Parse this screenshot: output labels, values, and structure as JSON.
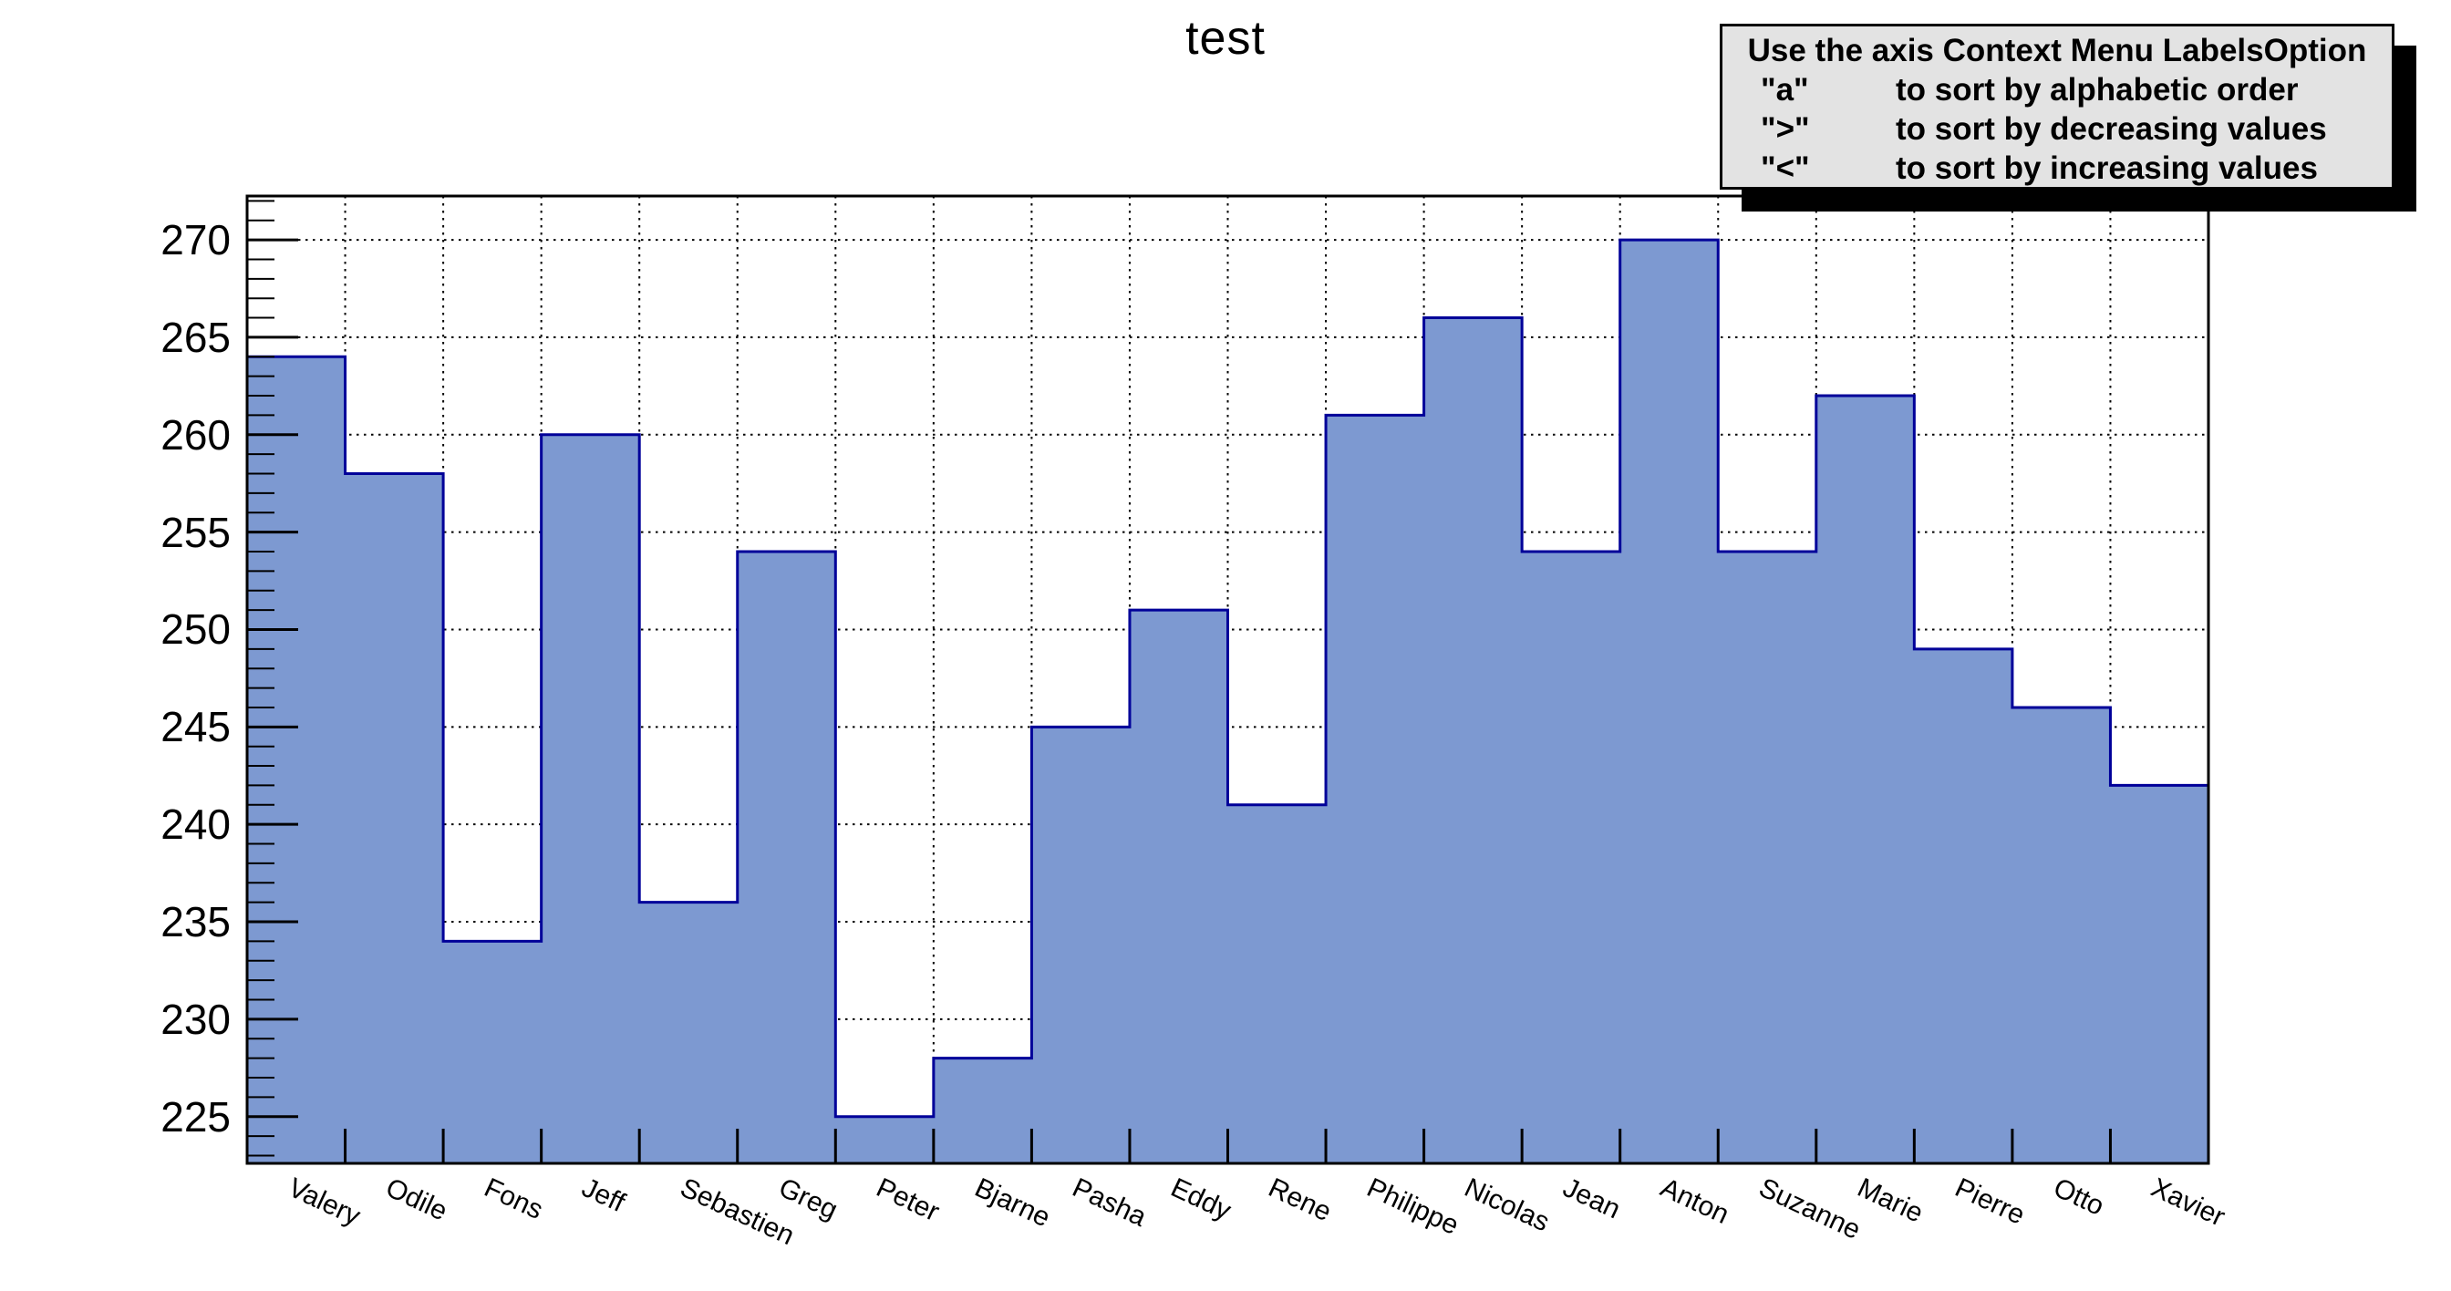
{
  "window": {
    "background": "#ffffff"
  },
  "title": "test",
  "info_box": {
    "heading": "Use the axis Context Menu LabelsOption",
    "items": [
      {
        "key": "\"a\"",
        "desc": "to sort by alphabetic order"
      },
      {
        "key": "\">\"",
        "desc": "to sort by decreasing values"
      },
      {
        "key": "\"<\"",
        "desc": "to sort by increasing values"
      }
    ],
    "colors": {
      "background": "#e3e3e3",
      "border": "#000000",
      "shadow": "#000000",
      "text": "#000000"
    }
  },
  "chart_data": {
    "type": "bar",
    "title": "test",
    "categories": [
      "Valery",
      "Odile",
      "Fons",
      "Jeff",
      "Sebastien",
      "Greg",
      "Peter",
      "Bjarne",
      "Pasha",
      "Eddy",
      "Rene",
      "Philippe",
      "Nicolas",
      "Jean",
      "Anton",
      "Suzanne",
      "Marie",
      "Pierre",
      "Otto",
      "Xavier"
    ],
    "values": [
      264,
      258,
      234,
      260,
      236,
      254,
      225,
      228,
      245,
      251,
      241,
      261,
      266,
      254,
      270,
      254,
      262,
      249,
      246,
      242
    ],
    "ylim": [
      222.6,
      272.25
    ],
    "yticks": [
      225,
      230,
      235,
      240,
      245,
      250,
      255,
      260,
      265,
      270
    ],
    "minor_tick_step": 1,
    "grid": true,
    "legend": "none",
    "xlabel": "",
    "ylabel": "",
    "x_label_rotation_deg": 25,
    "colors": {
      "bar_fill": "#7d99d1",
      "bar_edge": "#000099",
      "grid": "#000000",
      "axis": "#000000",
      "text": "#000000"
    }
  }
}
